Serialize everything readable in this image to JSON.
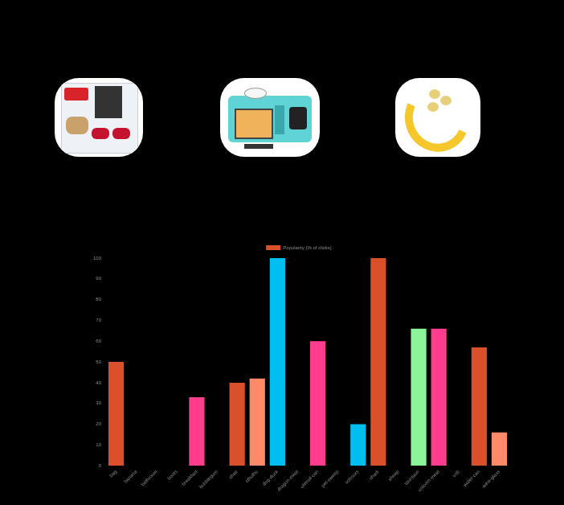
{
  "chart_data": {
    "type": "bar",
    "categories": [
      "bag",
      "banana",
      "bathroom",
      "boots",
      "breakfast",
      "bubblegum",
      "chair",
      "cthulhu",
      "dog-duck",
      "dragon-meat",
      "utensil-can",
      "pet-sweep",
      "scissors",
      "shark",
      "sheep",
      "tauntaun",
      "unicorn-meat",
      "usb",
      "water-can",
      "wine-glass"
    ],
    "series": [
      {
        "name": "Popularity (% of clicks)",
        "color": "#d9502a",
        "values": [
          50,
          0,
          0,
          0,
          33,
          0,
          40,
          42,
          100,
          0,
          60,
          0,
          20,
          100,
          0,
          66,
          66,
          0,
          57,
          16
        ]
      }
    ],
    "colors": [
      "#d9502a",
      "#ff8a6a",
      "#00bff0",
      "#8cf59a",
      "#ff3d8c",
      "#d9502a",
      "#d9502a",
      "#ff8a6a",
      "#00bff0",
      "#8cf59a",
      "#ff3d8c",
      "#d9502a",
      "#00bff0",
      "#d9502a",
      "#ff8a6a",
      "#8cf59a",
      "#ff3d8c",
      "#00bff0",
      "#d9502a",
      "#ff8a6a"
    ],
    "ylim": [
      0,
      100
    ],
    "yticks": [
      0,
      10,
      20,
      30,
      40,
      50,
      60,
      70,
      80,
      90,
      100
    ],
    "grid": false,
    "legend": "top"
  }
}
